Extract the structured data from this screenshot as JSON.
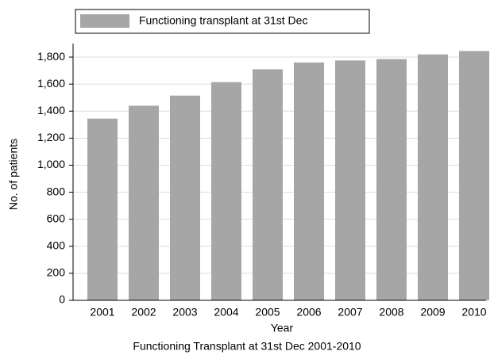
{
  "chart_data": {
    "type": "bar",
    "title": "Functioning Transplant at 31st Dec 2001-2010",
    "x_label": "Year",
    "y_label": "No. of patients",
    "legend": [
      {
        "name": "Functioning transplant at 31st Dec",
        "color": "#a6a6a6"
      }
    ],
    "categories": [
      "2001",
      "2002",
      "2003",
      "2004",
      "2005",
      "2006",
      "2007",
      "2008",
      "2009",
      "2010"
    ],
    "values": [
      1345,
      1440,
      1515,
      1615,
      1710,
      1760,
      1775,
      1785,
      1820,
      1845
    ],
    "color": "#a6a6a6",
    "ylim": [
      0,
      1900
    ],
    "yticks": [
      0,
      200,
      400,
      600,
      800,
      {
        "value": 1000,
        "label": "1,000"
      },
      {
        "value": 1200,
        "label": "1,200"
      },
      {
        "value": 1400,
        "label": "1,400"
      },
      {
        "value": 1600,
        "label": "1,600"
      },
      {
        "value": 1800,
        "label": "1,800"
      }
    ],
    "grid": true
  }
}
